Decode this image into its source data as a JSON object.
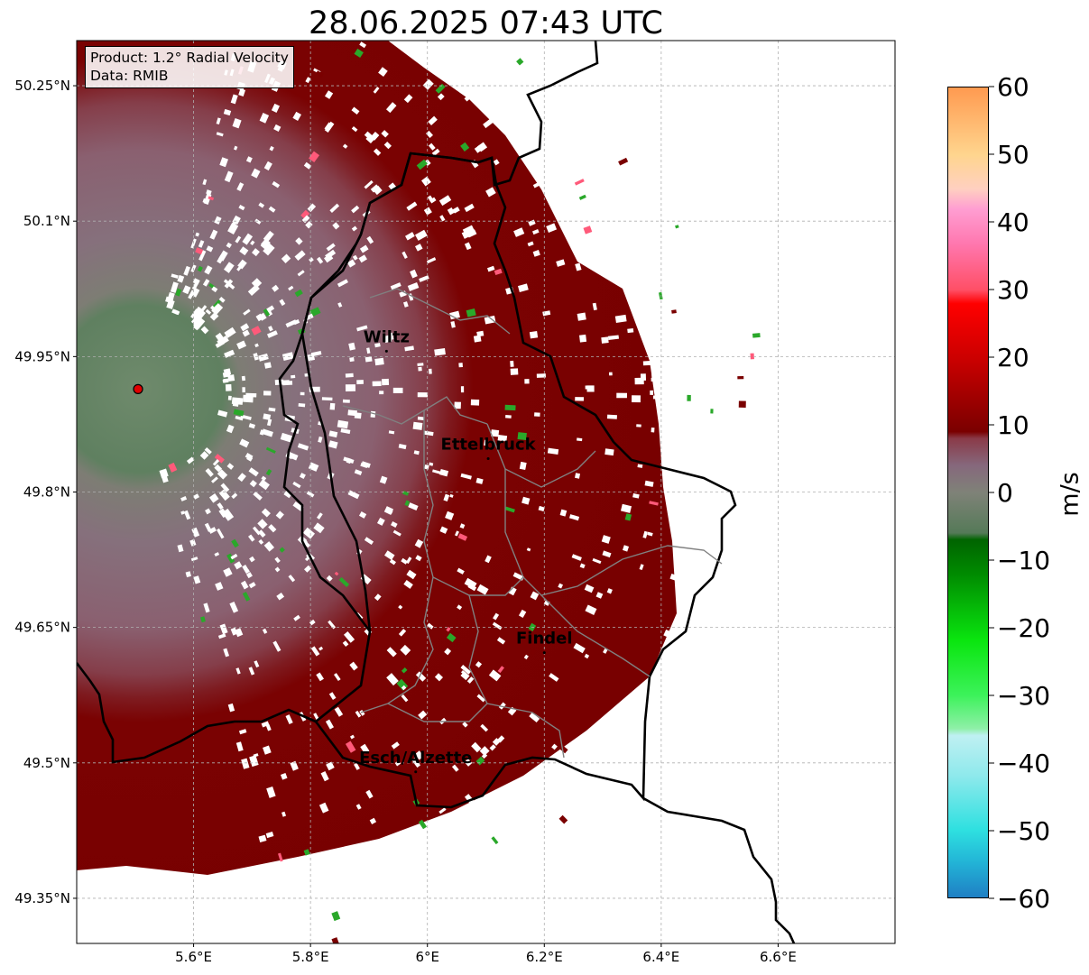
{
  "title": "28.06.2025 07:43 UTC",
  "info_box": {
    "product": "Product: 1.2° Radial Velocity",
    "data": "Data: RMIB"
  },
  "map": {
    "extent": {
      "lon_min": 5.4,
      "lon_max": 6.8,
      "lat_min": 49.3,
      "lat_max": 50.3
    },
    "radar_site": {
      "lon": 5.505,
      "lat": 49.914
    },
    "lon_ticks": [
      {
        "value": 5.6,
        "label": "5.6°E"
      },
      {
        "value": 5.8,
        "label": "5.8°E"
      },
      {
        "value": 6.0,
        "label": "6°E"
      },
      {
        "value": 6.2,
        "label": "6.2°E"
      },
      {
        "value": 6.4,
        "label": "6.4°E"
      },
      {
        "value": 6.6,
        "label": "6.6°E"
      }
    ],
    "lat_ticks": [
      {
        "value": 49.35,
        "label": "49.35°N"
      },
      {
        "value": 49.5,
        "label": "49.5°N"
      },
      {
        "value": 49.65,
        "label": "49.65°N"
      },
      {
        "value": 49.8,
        "label": "49.8°N"
      },
      {
        "value": 49.95,
        "label": "49.95°N"
      },
      {
        "value": 50.1,
        "label": "50.1°N"
      },
      {
        "value": 50.25,
        "label": "50.25°N"
      }
    ],
    "cities": [
      {
        "name": "Wiltz",
        "lon": 5.93,
        "lat": 49.966
      },
      {
        "name": "Ettelbruck",
        "lon": 6.104,
        "lat": 49.847
      },
      {
        "name": "Findel",
        "lon": 6.2,
        "lat": 49.632
      },
      {
        "name": "Esch/Alzette",
        "lon": 5.98,
        "lat": 49.5
      }
    ]
  },
  "colorbar": {
    "label": "m/s",
    "min": -60,
    "max": 60,
    "ticks": [
      {
        "value": 60,
        "label": "60"
      },
      {
        "value": 50,
        "label": "50"
      },
      {
        "value": 40,
        "label": "40"
      },
      {
        "value": 30,
        "label": "30"
      },
      {
        "value": 20,
        "label": "20"
      },
      {
        "value": 10,
        "label": "10"
      },
      {
        "value": 0,
        "label": "0"
      },
      {
        "value": -10,
        "label": "−10"
      },
      {
        "value": -20,
        "label": "−20"
      },
      {
        "value": -30,
        "label": "−30"
      },
      {
        "value": -40,
        "label": "−40"
      },
      {
        "value": -50,
        "label": "−50"
      },
      {
        "value": -60,
        "label": "−60"
      }
    ],
    "stops": [
      {
        "v": -60,
        "color": "#1f7fc4"
      },
      {
        "v": -55,
        "color": "#22b2d6"
      },
      {
        "v": -50,
        "color": "#2ee0e0"
      },
      {
        "v": -42,
        "color": "#8ee9ec"
      },
      {
        "v": -36,
        "color": "#bff0f2"
      },
      {
        "v": -35,
        "color": "#8ff0a8"
      },
      {
        "v": -30,
        "color": "#3cf25a"
      },
      {
        "v": -22,
        "color": "#0ae60f"
      },
      {
        "v": -12,
        "color": "#008a00"
      },
      {
        "v": -7,
        "color": "#006400"
      },
      {
        "v": -6,
        "color": "#557a58"
      },
      {
        "v": 0,
        "color": "#7f8278"
      },
      {
        "v": 4,
        "color": "#86687c"
      },
      {
        "v": 8,
        "color": "#8a3a48"
      },
      {
        "v": 9,
        "color": "#7a0000"
      },
      {
        "v": 20,
        "color": "#cc0000"
      },
      {
        "v": 28,
        "color": "#ff0000"
      },
      {
        "v": 30,
        "color": "#ff4f66"
      },
      {
        "v": 37,
        "color": "#ff78b0"
      },
      {
        "v": 42,
        "color": "#ff9ed2"
      },
      {
        "v": 45,
        "color": "#ffd0c0"
      },
      {
        "v": 50,
        "color": "#ffd58e"
      },
      {
        "v": 60,
        "color": "#ff9a50"
      }
    ]
  }
}
